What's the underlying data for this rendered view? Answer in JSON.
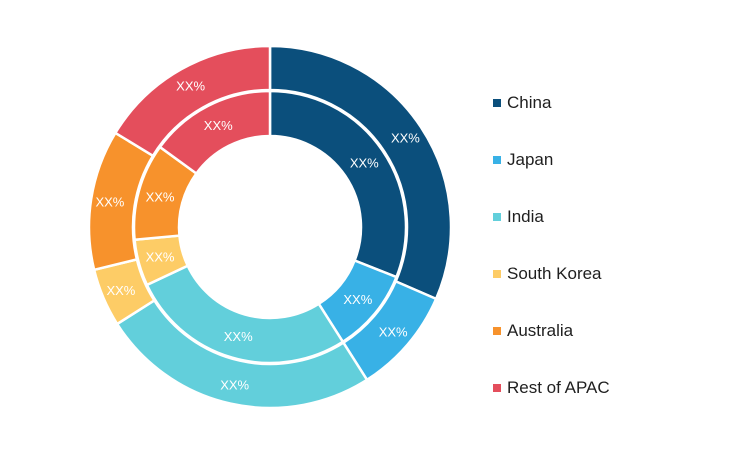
{
  "chart_data": {
    "type": "pie",
    "variant": "nested-donut",
    "categories": [
      "China",
      "Japan",
      "India",
      "South Korea",
      "Australia",
      "Rest of APAC"
    ],
    "colors": [
      "#0b4f7c",
      "#38b1e6",
      "#62cfdb",
      "#fdcc66",
      "#f7922c",
      "#e44e5c"
    ],
    "series": [
      {
        "ring": "outer",
        "values": [
          31.5,
          9.5,
          25,
          5.2,
          12.5,
          16.3
        ],
        "labels": [
          "XX%",
          "XX%",
          "XX%",
          "XX%",
          "XX%",
          "XX%"
        ]
      },
      {
        "ring": "inner",
        "values": [
          31,
          10,
          27,
          5.5,
          11.5,
          15
        ],
        "labels": [
          "XX%",
          "XX%",
          "XX%",
          "XX%",
          "XX%",
          "XX%"
        ]
      }
    ],
    "legend_position": "right"
  }
}
